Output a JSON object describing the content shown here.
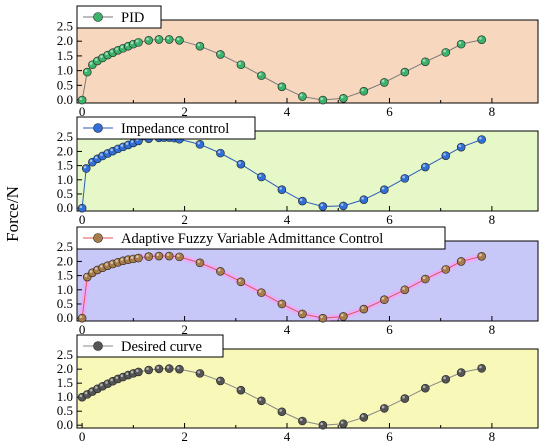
{
  "ylabel": "Force/N",
  "chart_data": [
    {
      "type": "scatter",
      "series": [
        {
          "name": "PID",
          "x": [
            0.0,
            0.1,
            0.2,
            0.3,
            0.4,
            0.5,
            0.6,
            0.7,
            0.8,
            0.9,
            1.0,
            1.1,
            1.3,
            1.5,
            1.7,
            1.9,
            2.3,
            2.7,
            3.1,
            3.5,
            3.9,
            4.3,
            4.7,
            5.1,
            5.5,
            5.9,
            6.3,
            6.7,
            7.1,
            7.4,
            7.8
          ],
          "y": [
            0.0,
            0.95,
            1.2,
            1.33,
            1.43,
            1.53,
            1.61,
            1.69,
            1.76,
            1.83,
            1.9,
            1.96,
            2.03,
            2.06,
            2.06,
            2.03,
            1.83,
            1.55,
            1.2,
            0.83,
            0.45,
            0.12,
            0.0,
            0.06,
            0.3,
            0.6,
            0.95,
            1.3,
            1.62,
            1.9,
            2.05
          ]
        }
      ],
      "panel_color": "#f8d7bf",
      "marker_color": "#3bb36a",
      "line_color": "#7a7a7a",
      "xlim": [
        -0.1,
        8.9
      ],
      "ylim": [
        -0.1,
        2.72
      ],
      "xticks": [
        "0",
        "2",
        "4",
        "6",
        "8"
      ],
      "yticks": [
        "0.0",
        "0.5",
        "1.0",
        "1.5",
        "2.0",
        "2.5"
      ],
      "legend": {
        "label": "PID",
        "placement": "top-left"
      }
    },
    {
      "type": "scatter",
      "series": [
        {
          "name": "Impedance control",
          "x": [
            0.0,
            0.08,
            0.2,
            0.3,
            0.4,
            0.5,
            0.6,
            0.7,
            0.8,
            0.9,
            1.0,
            1.1,
            1.3,
            1.5,
            1.6,
            1.7,
            1.8,
            1.9,
            2.3,
            2.7,
            3.1,
            3.5,
            3.9,
            4.3,
            4.7,
            5.1,
            5.5,
            5.9,
            6.3,
            6.7,
            7.1,
            7.4,
            7.8
          ],
          "y": [
            0.0,
            1.4,
            1.62,
            1.74,
            1.84,
            1.93,
            2.01,
            2.09,
            2.16,
            2.23,
            2.3,
            2.37,
            2.45,
            2.48,
            2.49,
            2.49,
            2.47,
            2.43,
            2.25,
            1.94,
            1.55,
            1.1,
            0.65,
            0.25,
            0.06,
            0.08,
            0.3,
            0.65,
            1.05,
            1.45,
            1.85,
            2.15,
            2.42
          ]
        }
      ],
      "panel_color": "#e6f8c8",
      "marker_color": "#2f6fd6",
      "line_color": "#2a5bc0",
      "xlim": [
        -0.1,
        8.9
      ],
      "ylim": [
        -0.1,
        2.72
      ],
      "xticks": [
        "0",
        "2",
        "4",
        "6",
        "8"
      ],
      "yticks": [
        "0.0",
        "0.5",
        "1.0",
        "1.5",
        "2.0",
        "2.5"
      ],
      "legend": {
        "label": "Impedance control",
        "placement": "top-left"
      }
    },
    {
      "type": "scatter",
      "series": [
        {
          "name": "Adaptive Fuzzy Variable Admittance Control",
          "x": [
            0.0,
            0.1,
            0.2,
            0.3,
            0.4,
            0.5,
            0.6,
            0.7,
            0.8,
            0.9,
            1.0,
            1.1,
            1.3,
            1.5,
            1.7,
            1.9,
            2.3,
            2.7,
            3.1,
            3.5,
            3.9,
            4.3,
            4.7,
            5.1,
            5.5,
            5.9,
            6.3,
            6.7,
            7.1,
            7.4,
            7.8
          ],
          "y": [
            0.0,
            1.45,
            1.6,
            1.7,
            1.78,
            1.85,
            1.91,
            1.97,
            2.02,
            2.06,
            2.09,
            2.12,
            2.17,
            2.19,
            2.19,
            2.16,
            1.95,
            1.65,
            1.28,
            0.9,
            0.5,
            0.15,
            0.0,
            0.06,
            0.32,
            0.65,
            1.0,
            1.38,
            1.72,
            2.0,
            2.18
          ]
        }
      ],
      "panel_color": "#c8c8f8",
      "marker_color": "#a87c4a",
      "line_color": "#e05555",
      "xlim": [
        -0.1,
        8.9
      ],
      "ylim": [
        -0.1,
        2.72
      ],
      "xticks": [
        "0",
        "2",
        "4",
        "6",
        "8"
      ],
      "yticks": [
        "0.0",
        "0.5",
        "1.0",
        "1.5",
        "2.0",
        "2.5"
      ],
      "legend": {
        "label": "Adaptive Fuzzy Variable Admittance Control",
        "placement": "top-left"
      }
    },
    {
      "type": "scatter",
      "series": [
        {
          "name": "Desired curve",
          "x": [
            0.0,
            0.1,
            0.2,
            0.3,
            0.4,
            0.5,
            0.6,
            0.7,
            0.8,
            0.9,
            1.0,
            1.1,
            1.3,
            1.5,
            1.7,
            1.9,
            2.3,
            2.7,
            3.1,
            3.5,
            3.9,
            4.3,
            4.7,
            5.1,
            5.5,
            5.9,
            6.3,
            6.7,
            7.1,
            7.4,
            7.8
          ],
          "y": [
            1.0,
            1.1,
            1.2,
            1.3,
            1.39,
            1.48,
            1.57,
            1.65,
            1.72,
            1.79,
            1.85,
            1.9,
            1.97,
            2.01,
            2.02,
            2.0,
            1.85,
            1.58,
            1.25,
            0.87,
            0.48,
            0.15,
            0.0,
            0.05,
            0.28,
            0.6,
            0.95,
            1.32,
            1.64,
            1.88,
            2.03
          ]
        }
      ],
      "panel_color": "#f8f8b8",
      "marker_color": "#555555",
      "line_color": "#888888",
      "xlim": [
        -0.1,
        8.9
      ],
      "ylim": [
        -0.1,
        2.72
      ],
      "xticks": [
        "0",
        "2",
        "4",
        "6",
        "8"
      ],
      "yticks": [
        "0.0",
        "0.5",
        "1.0",
        "1.5",
        "2.0",
        "2.5"
      ],
      "legend": {
        "label": "Desired curve",
        "placement": "top-left"
      }
    }
  ]
}
